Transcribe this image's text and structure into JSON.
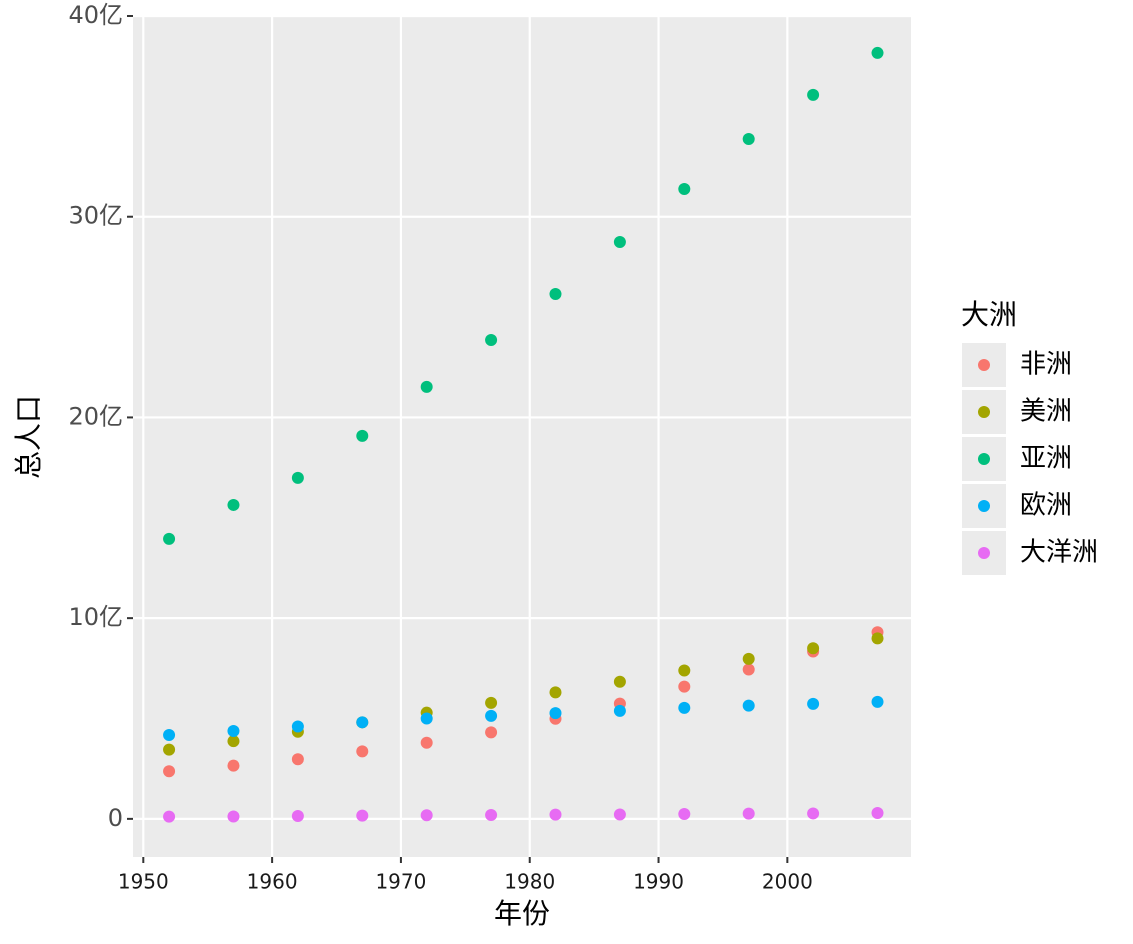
{
  "chart_data": {
    "type": "scatter",
    "x_label": "年份",
    "y_label": "总人口",
    "legend_title": "大洲",
    "x": [
      1952,
      1957,
      1962,
      1967,
      1972,
      1977,
      1982,
      1987,
      1992,
      1997,
      2002,
      2007
    ],
    "series": [
      {
        "name": "非洲",
        "color": "#F8766D",
        "values": [
          237000000,
          265000000,
          297000000,
          336000000,
          379000000,
          431000000,
          499000000,
          574000000,
          659000000,
          744000000,
          834000000,
          930000000
        ]
      },
      {
        "name": "美洲",
        "color": "#A3A500",
        "values": [
          345000000,
          387000000,
          434000000,
          481000000,
          529000000,
          578000000,
          630000000,
          683000000,
          739000000,
          797000000,
          850000000,
          899000000
        ]
      },
      {
        "name": "亚洲",
        "color": "#00BF7D",
        "values": [
          1395000000,
          1564000000,
          1699000000,
          1908000000,
          2152000000,
          2386000000,
          2615000000,
          2874000000,
          3138000000,
          3387000000,
          3607000000,
          3816000000
        ]
      },
      {
        "name": "欧洲",
        "color": "#00B0F6",
        "values": [
          418000000,
          438000000,
          460000000,
          481000000,
          500000000,
          513000000,
          527000000,
          538000000,
          553000000,
          564000000,
          573000000,
          583000000
        ]
      },
      {
        "name": "大洋洲",
        "color": "#E76BF3",
        "values": [
          11000000,
          12000000,
          14000000,
          16000000,
          18000000,
          19000000,
          21000000,
          22000000,
          24000000,
          26000000,
          27000000,
          29000000
        ]
      }
    ],
    "xlim": [
      1949.2,
      2009.6
    ],
    "ylim": [
      -190000000,
      4000000000
    ],
    "xticks": [
      1950,
      1960,
      1970,
      1980,
      1990,
      2000
    ],
    "yticks": [
      0,
      {
        "value": 1000000000,
        "label": "10亿"
      },
      {
        "value": 2000000000,
        "label": "20亿"
      },
      {
        "value": 3000000000,
        "label": "30亿"
      },
      {
        "value": 4000000000,
        "label": "40亿"
      }
    ],
    "grid": true
  }
}
